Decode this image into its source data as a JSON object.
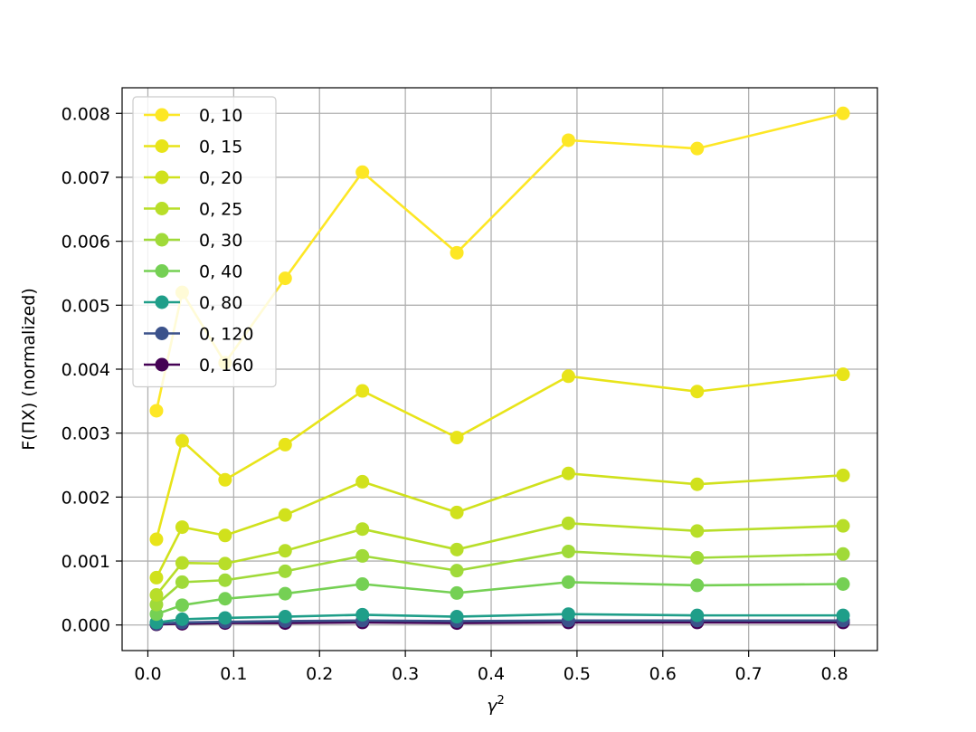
{
  "chart_data": {
    "type": "line",
    "xlabel": "γ",
    "xlabel_sup": "2",
    "ylabel": "F(ΠX) (normalized)",
    "xlim": [
      -0.03,
      0.85
    ],
    "ylim": [
      -0.0004,
      0.0084
    ],
    "x_ticks": [
      0.0,
      0.1,
      0.2,
      0.3,
      0.4,
      0.5,
      0.6,
      0.7,
      0.8
    ],
    "x_tick_labels": [
      "0.0",
      "0.1",
      "0.2",
      "0.3",
      "0.4",
      "0.5",
      "0.6",
      "0.7",
      "0.8"
    ],
    "y_ticks": [
      0.0,
      0.001,
      0.002,
      0.003,
      0.004,
      0.005,
      0.006,
      0.007,
      0.008
    ],
    "y_tick_labels": [
      "0.000",
      "0.001",
      "0.002",
      "0.003",
      "0.004",
      "0.005",
      "0.006",
      "0.007",
      "0.008"
    ],
    "grid": true,
    "legend_position": "upper-left",
    "x": [
      0.01,
      0.04,
      0.09,
      0.16,
      0.25,
      0.36,
      0.49,
      0.64,
      0.81
    ],
    "series": [
      {
        "name": "0, 10",
        "color": "#fde725",
        "values": [
          0.00335,
          0.0052,
          0.0041,
          0.00542,
          0.00708,
          0.00582,
          0.00758,
          0.00745,
          0.008
        ]
      },
      {
        "name": "0, 15",
        "color": "#e8e419",
        "values": [
          0.00134,
          0.00288,
          0.00227,
          0.00282,
          0.00366,
          0.00293,
          0.00389,
          0.00365,
          0.00392
        ]
      },
      {
        "name": "0, 20",
        "color": "#d0e11c",
        "values": [
          0.00074,
          0.00153,
          0.0014,
          0.00172,
          0.00224,
          0.00176,
          0.00237,
          0.0022,
          0.00234
        ]
      },
      {
        "name": "0, 25",
        "color": "#b8de29",
        "values": [
          0.00047,
          0.00097,
          0.00096,
          0.00116,
          0.0015,
          0.00118,
          0.00159,
          0.00147,
          0.00155
        ]
      },
      {
        "name": "0, 30",
        "color": "#a0da39",
        "values": [
          0.00032,
          0.00067,
          0.0007,
          0.00084,
          0.00108,
          0.00085,
          0.00115,
          0.00105,
          0.00111
        ]
      },
      {
        "name": "0, 40",
        "color": "#75d054",
        "values": [
          0.00017,
          0.00031,
          0.00041,
          0.00049,
          0.00064,
          0.0005,
          0.00067,
          0.00062,
          0.00064
        ]
      },
      {
        "name": "0, 80",
        "color": "#1f9e89",
        "values": [
          4e-05,
          9e-05,
          0.00011,
          0.00013,
          0.00016,
          0.00013,
          0.00017,
          0.00015,
          0.00015
        ]
      },
      {
        "name": "0, 120",
        "color": "#3b528b",
        "values": [
          2e-05,
          4e-05,
          5e-05,
          6e-05,
          7e-05,
          6e-05,
          7e-05,
          7e-05,
          7e-05
        ]
      },
      {
        "name": "0, 160",
        "color": "#440154",
        "values": [
          1e-05,
          2e-05,
          3e-05,
          3e-05,
          4e-05,
          3e-05,
          4e-05,
          4e-05,
          4e-05
        ]
      }
    ]
  }
}
